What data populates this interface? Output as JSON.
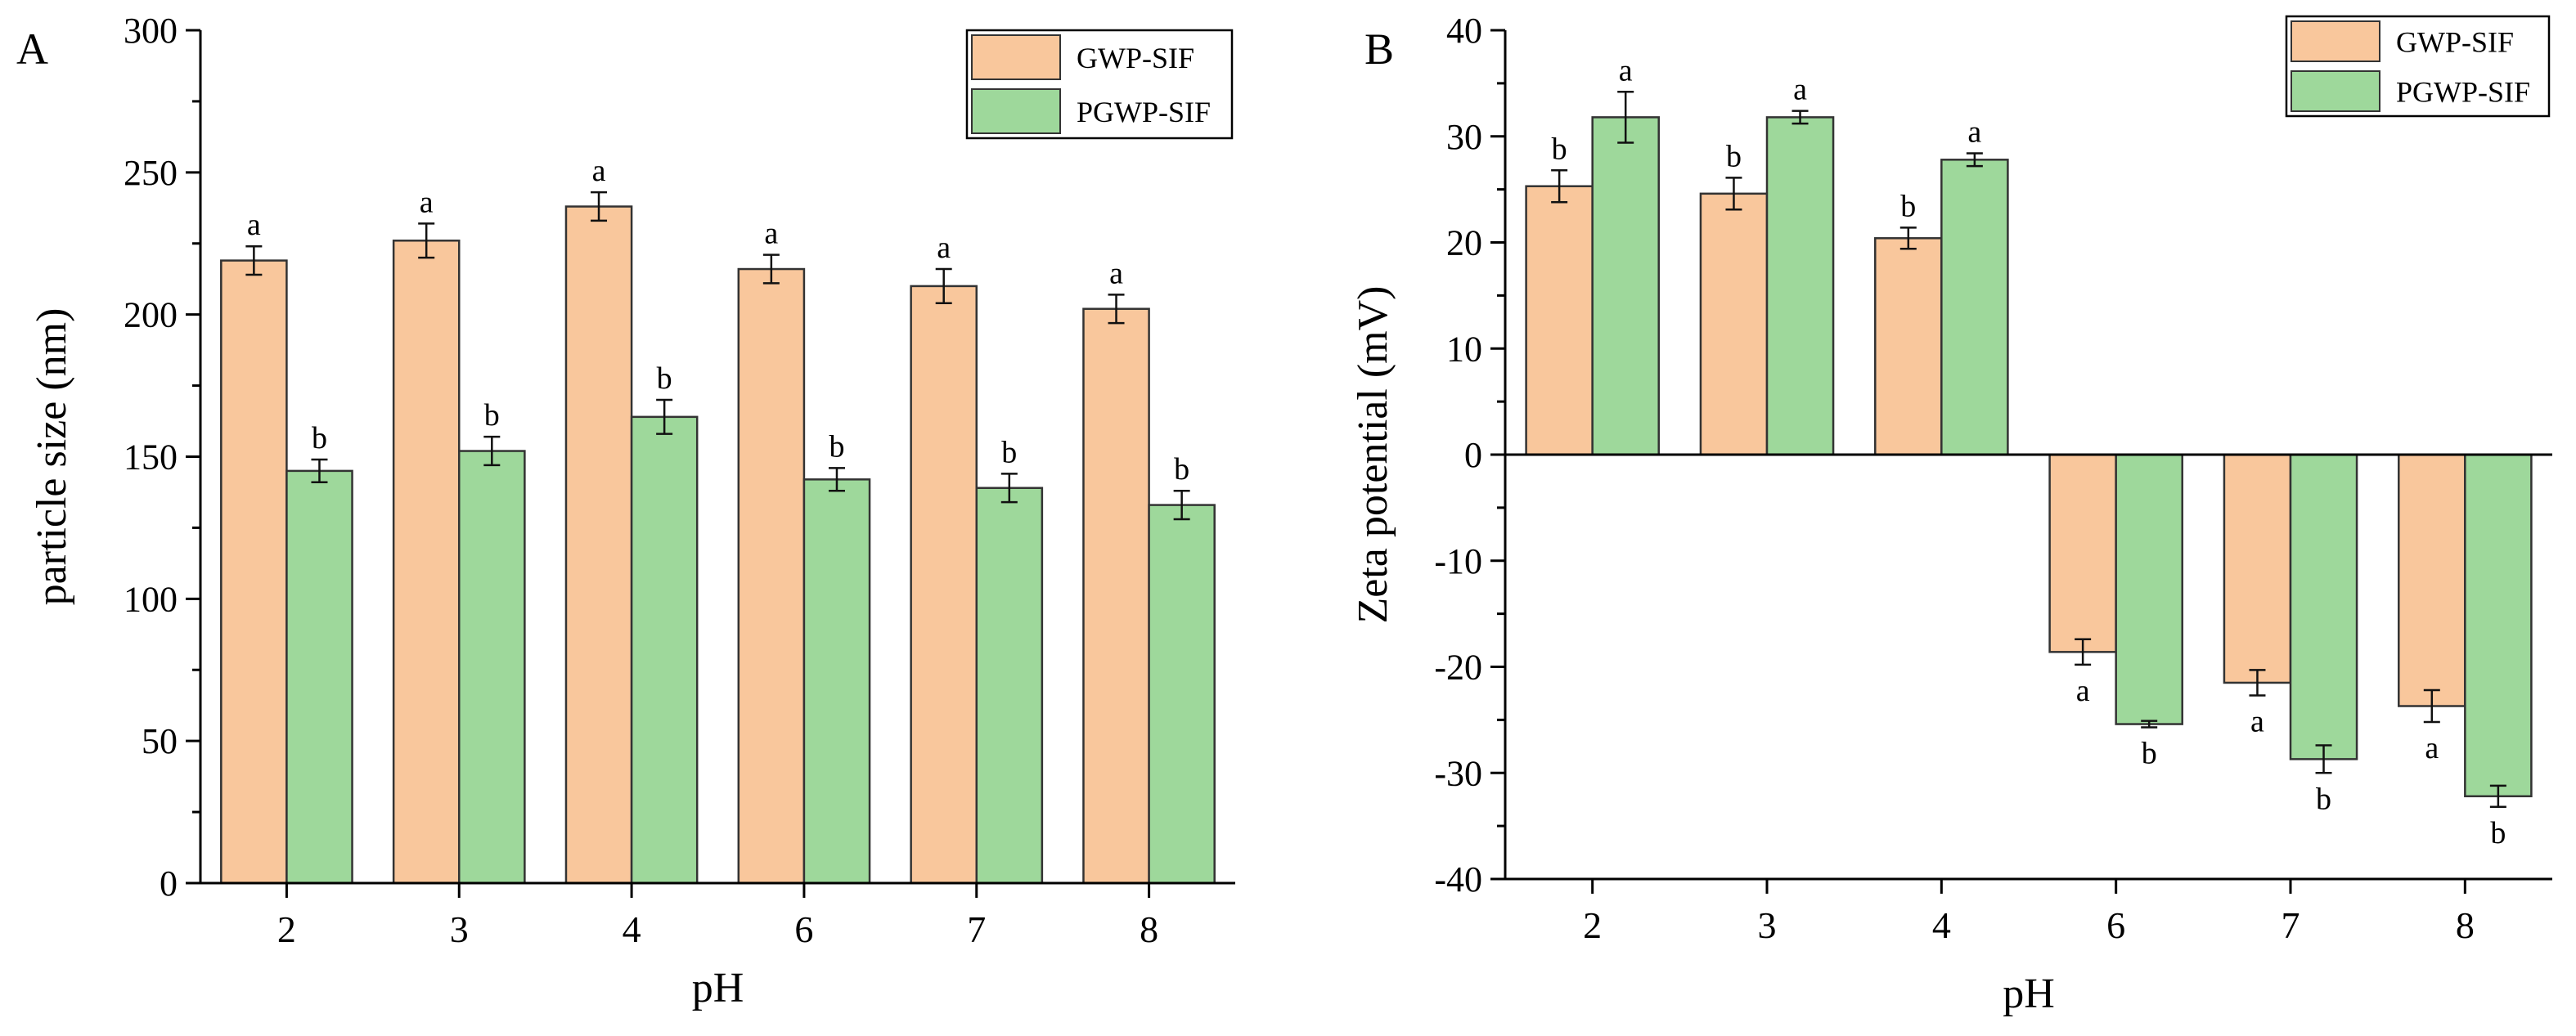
{
  "colors": {
    "GWP-SIF": "#f9c79c",
    "PGWP-SIF": "#9ed89b"
  },
  "chart_data": [
    {
      "panel": "A",
      "type": "bar",
      "title": "",
      "xlabel": "pH",
      "ylabel": "particle size (nm)",
      "categories": [
        "2",
        "3",
        "4",
        "6",
        "7",
        "8"
      ],
      "ylim": [
        0,
        300
      ],
      "yticks": [
        0,
        50,
        100,
        150,
        200,
        250,
        300
      ],
      "legend_position": "top-right",
      "series": [
        {
          "name": "GWP-SIF",
          "values": [
            219,
            226,
            238,
            216,
            210,
            202
          ],
          "errors": [
            5,
            6,
            5,
            5,
            6,
            5
          ],
          "labels": [
            "a",
            "a",
            "a",
            "a",
            "a",
            "a"
          ]
        },
        {
          "name": "PGWP-SIF",
          "values": [
            145,
            152,
            164,
            142,
            139,
            133
          ],
          "errors": [
            4,
            5,
            6,
            4,
            5,
            5
          ],
          "labels": [
            "b",
            "b",
            "b",
            "b",
            "b",
            "b"
          ]
        }
      ]
    },
    {
      "panel": "B",
      "type": "bar",
      "title": "",
      "xlabel": "pH",
      "ylabel": "Zeta potential (mV)",
      "categories": [
        "2",
        "3",
        "4",
        "6",
        "7",
        "8"
      ],
      "ylim": [
        -40,
        40
      ],
      "yticks": [
        -40,
        -30,
        -20,
        -10,
        0,
        10,
        20,
        30,
        40
      ],
      "legend_position": "top-right",
      "series": [
        {
          "name": "GWP-SIF",
          "values": [
            25.3,
            24.6,
            20.4,
            -18.6,
            -21.5,
            -23.7
          ],
          "errors": [
            1.5,
            1.5,
            1.0,
            1.2,
            1.2,
            1.5
          ],
          "labels": [
            "b",
            "b",
            "b",
            "a",
            "a",
            "a"
          ]
        },
        {
          "name": "PGWP-SIF",
          "values": [
            31.8,
            31.8,
            27.8,
            -25.4,
            -28.7,
            -32.2
          ],
          "errors": [
            2.4,
            0.6,
            0.6,
            0.3,
            1.3,
            1.0
          ],
          "labels": [
            "a",
            "a",
            "a",
            "b",
            "b",
            "b"
          ]
        }
      ]
    }
  ]
}
